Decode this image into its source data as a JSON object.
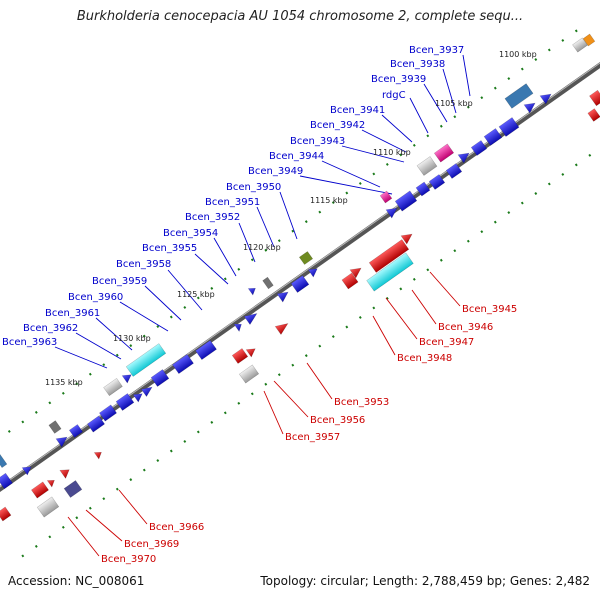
{
  "title": "Burkholderia cenocepacia AU 1054 chromosome 2, complete sequ...",
  "footer": {
    "accession": "Accession: NC_008061",
    "summary": "Topology: circular; Length: 2,788,459 bp; Genes: 2,482"
  },
  "colors": {
    "forward_gene": "#1a1ad6",
    "reverse_gene": "#e01010",
    "magenta": "#e0108a",
    "cyan": "#22e0e8",
    "steelblue": "#3a78b0",
    "olive": "#6e8a20",
    "orange": "#f09018",
    "gray": "#b0b0b0",
    "backbone": "#555555",
    "tick": "#1a7a1a"
  },
  "scale_labels": [
    "1100 kbp",
    "1105 kbp",
    "1110 kbp",
    "1115 kbp",
    "1120 kbp",
    "1125 kbp",
    "1130 kbp",
    "1135 kbp"
  ],
  "top_labels": [
    "Bcen_3937",
    "Bcen_3938",
    "Bcen_3939",
    "rdgC",
    "Bcen_3941",
    "Bcen_3942",
    "Bcen_3943",
    "Bcen_3944",
    "Bcen_3949",
    "Bcen_3950",
    "Bcen_3951",
    "Bcen_3952",
    "Bcen_3954",
    "Bcen_3955",
    "Bcen_3958",
    "Bcen_3959",
    "Bcen_3960",
    "Bcen_3961",
    "Bcen_3962",
    "Bcen_3963"
  ],
  "bottom_labels": [
    "Bcen_3945",
    "Bcen_3946",
    "Bcen_3947",
    "Bcen_3948",
    "Bcen_3953",
    "Bcen_3956",
    "Bcen_3957",
    "Bcen_3966",
    "Bcen_3969",
    "Bcen_3970"
  ]
}
